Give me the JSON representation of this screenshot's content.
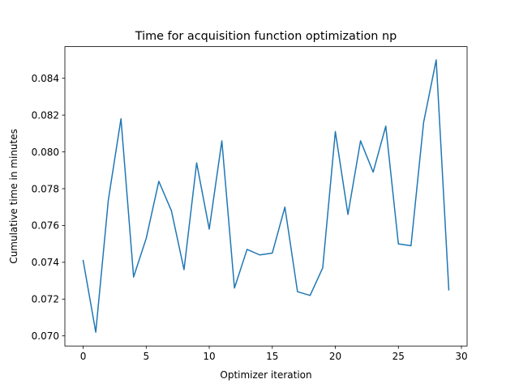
{
  "chart_data": {
    "type": "line",
    "title": "Time for acquisition function optimization np",
    "xlabel": "Optimizer iteration",
    "ylabel": "Cumulative time in minutes",
    "xlim": [
      -1.45,
      30.45
    ],
    "ylim": [
      0.06945,
      0.08572
    ],
    "xticks": [
      0,
      5,
      10,
      15,
      20,
      25,
      30
    ],
    "xtick_labels": [
      "0",
      "5",
      "10",
      "15",
      "20",
      "25",
      "30"
    ],
    "yticks": [
      0.07,
      0.072,
      0.074,
      0.076,
      0.078,
      0.08,
      0.082,
      0.084
    ],
    "ytick_labels": [
      "0.070",
      "0.072",
      "0.074",
      "0.076",
      "0.078",
      "0.080",
      "0.082",
      "0.084"
    ],
    "grid": false,
    "legend": "none",
    "series": [
      {
        "color": "#1f77b4",
        "x": [
          0,
          1,
          2,
          3,
          4,
          5,
          6,
          7,
          8,
          9,
          10,
          11,
          12,
          13,
          14,
          15,
          16,
          17,
          18,
          19,
          20,
          21,
          22,
          23,
          24,
          25,
          26,
          27,
          28,
          29
        ],
        "y": [
          0.0741,
          0.0702,
          0.0774,
          0.0818,
          0.0732,
          0.0753,
          0.0784,
          0.0768,
          0.0736,
          0.0794,
          0.0758,
          0.0806,
          0.0726,
          0.0747,
          0.0744,
          0.0745,
          0.077,
          0.0724,
          0.0722,
          0.0737,
          0.0811,
          0.0766,
          0.0806,
          0.0789,
          0.0814,
          0.075,
          0.0749,
          0.0816,
          0.085,
          0.0725
        ]
      }
    ]
  }
}
